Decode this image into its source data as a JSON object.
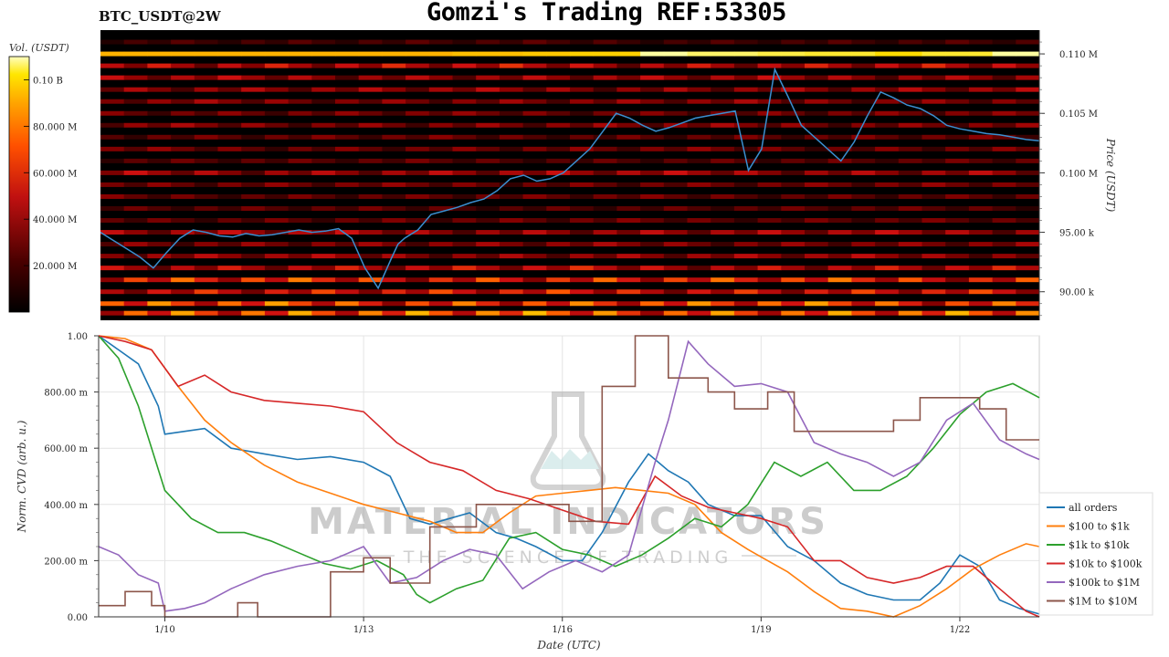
{
  "header": {
    "pair": "BTC_USDT@2W",
    "title": "Gomzi's Trading REF:53305"
  },
  "watermark": {
    "line1": "MATERIAL INDICATORS",
    "line2": "THE SCIENCE OF TRADING"
  },
  "colorbar": {
    "label": "Vol. (USDT)",
    "ticks": [
      "0.10 B",
      "80.000 M",
      "60.000 M",
      "40.000 M",
      "20.000 M"
    ],
    "tick_values": [
      100,
      80,
      60,
      40,
      20
    ],
    "range": [
      0,
      110
    ]
  },
  "colors": {
    "all_orders": "#1f77b4",
    "s100_1k": "#ff7f0e",
    "s1k_10k": "#2ca02c",
    "s10k_100k": "#d62728",
    "s100k_1m": "#9467bd",
    "s1m_10m": "#8c564b",
    "heatmap_bg": "#000000",
    "colormap": [
      "#000000",
      "#3a0000",
      "#8b0000",
      "#d01010",
      "#ff5a00",
      "#ffa500",
      "#ffe000",
      "#ffffa0"
    ]
  },
  "chart_data": [
    {
      "type": "heatmap",
      "ylabel": "Price (USDT)",
      "yticks": [
        "0.110 M",
        "0.105 M",
        "0.100 M",
        "95.00 k",
        "90.00 k"
      ],
      "ytick_values": [
        110000,
        105000,
        100000,
        95000,
        90000
      ],
      "ylim": [
        87600,
        112000
      ],
      "xlim": [
        0,
        14.2
      ],
      "levels": [
        {
          "price": 111000,
          "intensity": 0.15
        },
        {
          "price": 110000,
          "intensity_series": [
            0.75,
            0.75,
            0.75,
            0.75,
            0.75,
            0.75,
            0.78,
            0.8,
            0.82,
            1.0,
            0.95,
            0.92,
            0.9,
            0.85,
            0.9,
            1.0
          ]
        },
        {
          "price": 109000,
          "intensity": 0.35
        },
        {
          "price": 108000,
          "intensity": 0.3
        },
        {
          "price": 107000,
          "intensity": 0.28
        },
        {
          "price": 106000,
          "intensity": 0.25
        },
        {
          "price": 105000,
          "intensity": 0.22
        },
        {
          "price": 104000,
          "intensity": 0.25
        },
        {
          "price": 103000,
          "intensity": 0.2
        },
        {
          "price": 102000,
          "intensity": 0.22
        },
        {
          "price": 101000,
          "intensity": 0.18
        },
        {
          "price": 100000,
          "intensity": 0.3
        },
        {
          "price": 99000,
          "intensity": 0.22
        },
        {
          "price": 98000,
          "intensity": 0.2
        },
        {
          "price": 97000,
          "intensity": 0.18
        },
        {
          "price": 96000,
          "intensity": 0.2
        },
        {
          "price": 95000,
          "intensity": 0.3
        },
        {
          "price": 94000,
          "intensity": 0.25
        },
        {
          "price": 93000,
          "intensity": 0.28
        },
        {
          "price": 92000,
          "intensity": 0.35
        },
        {
          "price": 91000,
          "intensity": 0.45
        },
        {
          "price": 90000,
          "intensity": 0.4
        },
        {
          "price": 89000,
          "intensity": 0.5
        },
        {
          "price": 88200,
          "intensity": 0.55
        }
      ],
      "series": [
        {
          "name": "BTC price",
          "x": [
            0,
            0.2,
            0.4,
            0.6,
            0.8,
            1.0,
            1.2,
            1.4,
            1.6,
            1.8,
            2.0,
            2.2,
            2.4,
            2.6,
            2.8,
            3.0,
            3.2,
            3.4,
            3.6,
            3.8,
            4.0,
            4.2,
            4.4,
            4.5,
            4.6,
            4.8,
            5.0,
            5.2,
            5.4,
            5.6,
            5.8,
            6.0,
            6.2,
            6.4,
            6.6,
            6.8,
            7.0,
            7.2,
            7.4,
            7.6,
            7.8,
            8.0,
            8.2,
            8.4,
            8.6,
            8.8,
            9.0,
            9.2,
            9.4,
            9.6,
            9.8,
            10.0,
            10.2,
            10.4,
            10.6,
            10.8,
            11.0,
            11.2,
            11.4,
            11.6,
            11.8,
            12.0,
            12.2,
            12.4,
            12.6,
            12.8,
            13.0,
            13.2,
            13.4,
            13.6,
            13.8,
            14.0,
            14.2
          ],
          "y": [
            95000,
            94300,
            93600,
            92900,
            92000,
            93300,
            94500,
            95200,
            95000,
            94700,
            94600,
            94900,
            94700,
            94800,
            95000,
            95200,
            95000,
            95100,
            95300,
            94500,
            92000,
            90300,
            92800,
            94000,
            94500,
            95200,
            96500,
            96800,
            97100,
            97500,
            97800,
            98500,
            99500,
            99800,
            99300,
            99500,
            100000,
            101000,
            102000,
            103500,
            105000,
            104600,
            104000,
            103500,
            103800,
            104200,
            104600,
            104800,
            105000,
            105200,
            100200,
            102000,
            108700,
            106400,
            104000,
            103000,
            102000,
            101000,
            102600,
            104800,
            106800,
            106300,
            105700,
            105400,
            104800,
            104000,
            103700,
            103500,
            103300,
            103200,
            103000,
            102800,
            102700
          ]
        }
      ]
    },
    {
      "type": "line",
      "xlabel": "Date (UTC)",
      "ylabel": "Norm. CVD (arb. u.)",
      "xticks": [
        "1/10",
        "1/13",
        "1/16",
        "1/19",
        "1/22"
      ],
      "xtick_values": [
        1,
        4,
        7,
        10,
        13
      ],
      "yticks": [
        "1.00",
        "800.00 m",
        "600.00 m",
        "400.00 m",
        "200.00 m",
        "0.00"
      ],
      "ytick_values": [
        1.0,
        0.8,
        0.6,
        0.4,
        0.2,
        0.0
      ],
      "xlim": [
        0,
        14.2
      ],
      "ylim": [
        0,
        1
      ],
      "grid": true,
      "legend_position": "bottom-right",
      "series": [
        {
          "name": "all orders",
          "x": [
            0,
            0.3,
            0.6,
            0.9,
            1.0,
            1.3,
            1.6,
            2.0,
            2.5,
            3.0,
            3.5,
            4.0,
            4.4,
            4.7,
            5.0,
            5.3,
            5.6,
            6.0,
            6.3,
            6.6,
            7.0,
            7.3,
            7.6,
            8.0,
            8.3,
            8.6,
            8.9,
            9.2,
            9.6,
            10.0,
            10.4,
            10.8,
            11.2,
            11.6,
            12.0,
            12.4,
            12.7,
            13.0,
            13.3,
            13.6,
            13.9,
            14.2
          ],
          "y": [
            1.0,
            0.95,
            0.9,
            0.75,
            0.65,
            0.66,
            0.67,
            0.6,
            0.58,
            0.56,
            0.57,
            0.55,
            0.5,
            0.35,
            0.33,
            0.35,
            0.37,
            0.3,
            0.28,
            0.25,
            0.2,
            0.2,
            0.3,
            0.48,
            0.58,
            0.52,
            0.48,
            0.4,
            0.36,
            0.36,
            0.25,
            0.2,
            0.12,
            0.08,
            0.06,
            0.06,
            0.12,
            0.22,
            0.18,
            0.06,
            0.03,
            0.01
          ]
        },
        {
          "name": "$100 to $1k",
          "x": [
            0,
            0.4,
            0.8,
            1.2,
            1.6,
            2.0,
            2.5,
            3.0,
            3.5,
            4.0,
            4.5,
            5.0,
            5.4,
            5.8,
            6.2,
            6.6,
            7.0,
            7.4,
            7.8,
            8.2,
            8.6,
            9.0,
            9.4,
            9.8,
            10.1,
            10.4,
            10.8,
            11.2,
            11.6,
            12.0,
            12.4,
            12.8,
            13.2,
            13.6,
            14.0,
            14.2
          ],
          "y": [
            1.0,
            0.99,
            0.95,
            0.82,
            0.7,
            0.62,
            0.54,
            0.48,
            0.44,
            0.4,
            0.37,
            0.34,
            0.3,
            0.3,
            0.37,
            0.43,
            0.44,
            0.45,
            0.46,
            0.45,
            0.44,
            0.4,
            0.3,
            0.24,
            0.2,
            0.16,
            0.09,
            0.03,
            0.02,
            0.0,
            0.04,
            0.1,
            0.17,
            0.22,
            0.26,
            0.25
          ]
        },
        {
          "name": "$1k to $10k",
          "x": [
            0,
            0.3,
            0.6,
            1.0,
            1.4,
            1.8,
            2.2,
            2.6,
            3.0,
            3.4,
            3.8,
            4.2,
            4.6,
            4.8,
            5.0,
            5.4,
            5.8,
            6.2,
            6.6,
            7.0,
            7.4,
            7.8,
            8.2,
            8.6,
            9.0,
            9.4,
            9.8,
            10.2,
            10.6,
            11.0,
            11.4,
            11.8,
            12.2,
            12.6,
            13.0,
            13.4,
            13.8,
            14.2
          ],
          "y": [
            1.0,
            0.92,
            0.75,
            0.45,
            0.35,
            0.3,
            0.3,
            0.27,
            0.23,
            0.19,
            0.17,
            0.2,
            0.15,
            0.08,
            0.05,
            0.1,
            0.13,
            0.28,
            0.3,
            0.24,
            0.22,
            0.18,
            0.22,
            0.28,
            0.35,
            0.32,
            0.4,
            0.55,
            0.5,
            0.55,
            0.45,
            0.45,
            0.5,
            0.6,
            0.72,
            0.8,
            0.83,
            0.78
          ]
        },
        {
          "name": "$10k to $100k",
          "x": [
            0,
            0.4,
            0.8,
            1.2,
            1.6,
            2.0,
            2.5,
            3.0,
            3.5,
            4.0,
            4.5,
            5.0,
            5.5,
            6.0,
            6.5,
            7.0,
            7.5,
            8.0,
            8.4,
            8.8,
            9.2,
            9.6,
            10.0,
            10.4,
            10.8,
            11.2,
            11.6,
            12.0,
            12.4,
            12.8,
            13.2,
            13.6,
            14.0,
            14.2
          ],
          "y": [
            1.0,
            0.98,
            0.95,
            0.82,
            0.86,
            0.8,
            0.77,
            0.76,
            0.75,
            0.73,
            0.62,
            0.55,
            0.52,
            0.45,
            0.42,
            0.38,
            0.34,
            0.33,
            0.5,
            0.43,
            0.39,
            0.37,
            0.35,
            0.32,
            0.2,
            0.2,
            0.14,
            0.12,
            0.14,
            0.18,
            0.18,
            0.1,
            0.02,
            0.0
          ]
        },
        {
          "name": "$100k to $1M",
          "x": [
            0,
            0.3,
            0.6,
            0.9,
            1.0,
            1.3,
            1.6,
            2.0,
            2.5,
            3.0,
            3.5,
            4.0,
            4.4,
            4.8,
            5.2,
            5.6,
            6.0,
            6.4,
            6.8,
            7.2,
            7.6,
            8.0,
            8.4,
            8.6,
            8.9,
            9.2,
            9.6,
            10.0,
            10.4,
            10.8,
            11.2,
            11.6,
            12.0,
            12.4,
            12.8,
            13.2,
            13.6,
            14.0,
            14.2
          ],
          "y": [
            0.25,
            0.22,
            0.15,
            0.12,
            0.02,
            0.03,
            0.05,
            0.1,
            0.15,
            0.18,
            0.2,
            0.25,
            0.12,
            0.14,
            0.2,
            0.24,
            0.22,
            0.1,
            0.16,
            0.2,
            0.16,
            0.22,
            0.55,
            0.7,
            0.98,
            0.9,
            0.82,
            0.83,
            0.8,
            0.62,
            0.58,
            0.55,
            0.5,
            0.55,
            0.7,
            0.76,
            0.63,
            0.58,
            0.56
          ]
        },
        {
          "name": "$1M to $10M",
          "x": [
            0,
            0.4,
            0.4,
            0.8,
            0.8,
            1.0,
            1.0,
            2.1,
            2.1,
            2.4,
            2.4,
            3.5,
            3.5,
            4.0,
            4.0,
            4.4,
            4.4,
            5.0,
            5.0,
            5.7,
            5.7,
            7.1,
            7.1,
            7.6,
            7.6,
            8.1,
            8.1,
            8.6,
            8.6,
            9.2,
            9.2,
            9.6,
            9.6,
            10.1,
            10.1,
            10.5,
            10.5,
            11.0,
            11.0,
            12.0,
            12.0,
            12.4,
            12.4,
            13.3,
            13.3,
            13.7,
            13.7,
            14.2
          ],
          "y": [
            0.04,
            0.04,
            0.09,
            0.09,
            0.04,
            0.04,
            0.0,
            0.0,
            0.05,
            0.05,
            0.0,
            0.0,
            0.16,
            0.16,
            0.21,
            0.21,
            0.12,
            0.12,
            0.32,
            0.32,
            0.4,
            0.4,
            0.34,
            0.34,
            0.82,
            0.82,
            1.0,
            1.0,
            0.85,
            0.85,
            0.8,
            0.8,
            0.74,
            0.74,
            0.8,
            0.8,
            0.66,
            0.66,
            0.66,
            0.66,
            0.7,
            0.7,
            0.78,
            0.78,
            0.74,
            0.74,
            0.63,
            0.63
          ]
        }
      ]
    }
  ]
}
